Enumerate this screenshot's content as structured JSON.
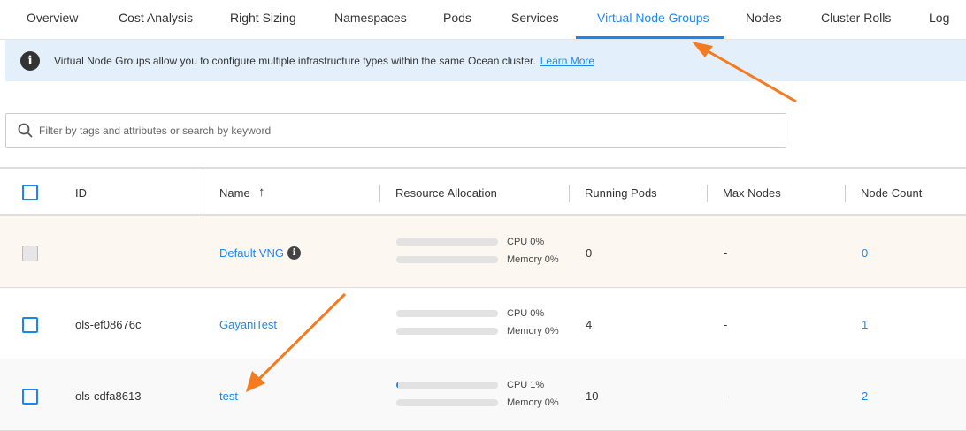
{
  "tabs": [
    "Overview",
    "Cost Analysis",
    "Right Sizing",
    "Namespaces",
    "Pods",
    "Services",
    "Virtual Node Groups",
    "Nodes",
    "Cluster Rolls",
    "Log"
  ],
  "active_tab": "Virtual Node Groups",
  "banner": {
    "text": "Virtual Node Groups allow you to configure multiple infrastructure types within the same Ocean cluster.",
    "link": "Learn More"
  },
  "search": {
    "placeholder": "Filter by tags and attributes or search by keyword"
  },
  "columns": {
    "id": "ID",
    "name": "Name",
    "sort_icon": "↑",
    "resource": "Resource Allocation",
    "running": "Running Pods",
    "max": "Max Nodes",
    "count": "Node Count"
  },
  "rows": [
    {
      "id": "",
      "name": "Default VNG",
      "cpu": "CPU 0%",
      "cpu_pct": 0,
      "mem": "Memory 0%",
      "mem_pct": 0,
      "running": "0",
      "max": "-",
      "count": "0"
    },
    {
      "id": "ols-ef08676c",
      "name": "GayaniTest",
      "cpu": "CPU 0%",
      "cpu_pct": 0,
      "mem": "Memory 0%",
      "mem_pct": 0,
      "running": "4",
      "max": "-",
      "count": "1"
    },
    {
      "id": "ols-cdfa8613",
      "name": "test",
      "cpu": "CPU 1%",
      "cpu_pct": 1,
      "mem": "Memory 0%",
      "mem_pct": 0,
      "running": "10",
      "max": "-",
      "count": "2"
    }
  ],
  "colors": {
    "accent": "#1d87f0",
    "annotation_arrow": "#f47b20",
    "default_row_bg": "#fdf7f1"
  }
}
